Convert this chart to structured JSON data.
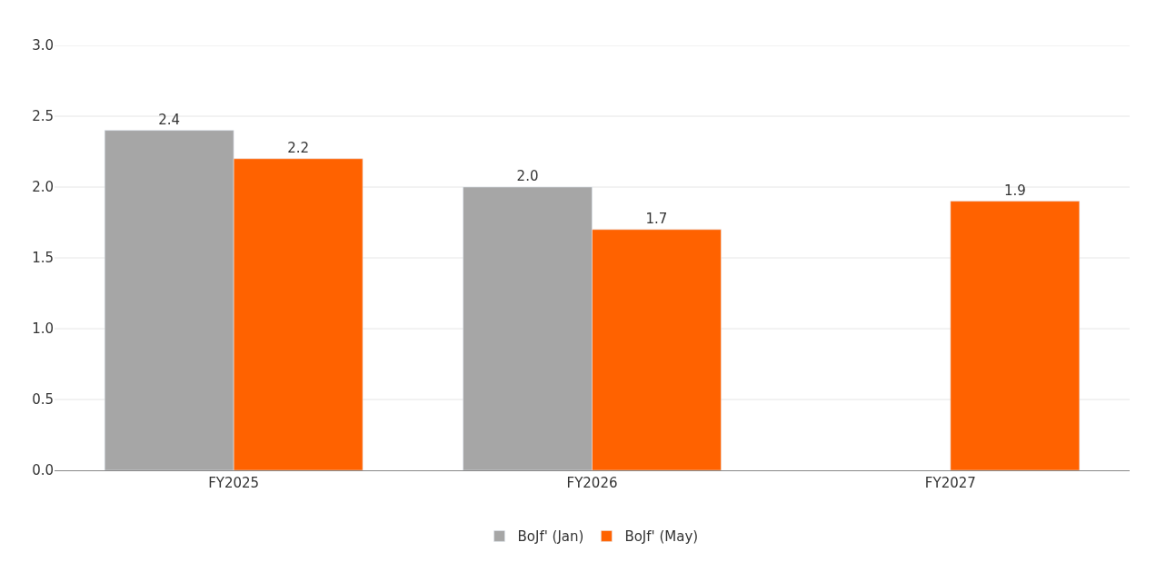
{
  "chart_data": {
    "type": "bar",
    "categories": [
      "FY2025",
      "FY2026",
      "FY2027"
    ],
    "series": [
      {
        "name": "BoJf' (Jan)",
        "color": "#a6a6a6",
        "values": [
          2.4,
          2.0,
          null
        ],
        "value_labels": [
          "2.4",
          "2.0",
          null
        ]
      },
      {
        "name": "BoJf' (May)",
        "color": "#ff6200",
        "values": [
          2.2,
          1.7,
          1.9
        ],
        "value_labels": [
          "2.2",
          "1.7",
          "1.9"
        ]
      }
    ],
    "ylim": [
      0,
      3.0
    ],
    "yticks": [
      {
        "value": 0,
        "label": "0.0"
      },
      {
        "value": 0.5,
        "label": "0.5"
      },
      {
        "value": 1.0,
        "label": "1.0"
      },
      {
        "value": 1.5,
        "label": "1.5"
      },
      {
        "value": 2.0,
        "label": "2.0"
      },
      {
        "value": 2.5,
        "label": "2.5"
      },
      {
        "value": 3.0,
        "label": "3.0"
      }
    ],
    "grid": "y",
    "legend": "bottom"
  }
}
